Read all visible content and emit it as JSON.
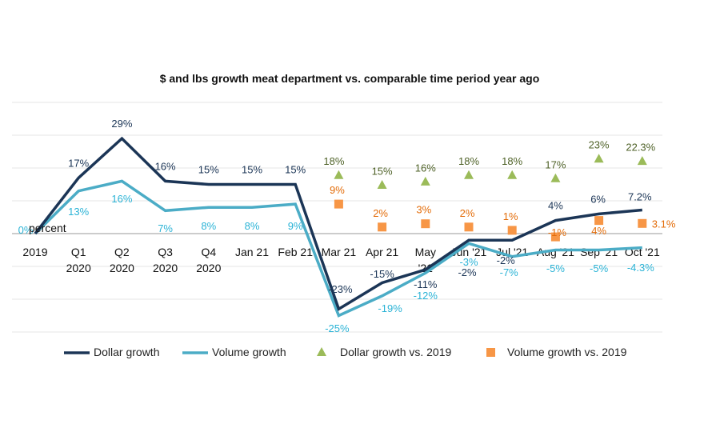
{
  "chart_data": {
    "type": "line",
    "title": "$ and lbs growth meat department vs. comparable time period year ago",
    "ylabel": "percent",
    "ylim": [
      -30,
      40
    ],
    "grid": true,
    "legend_position": "bottom",
    "categories": [
      [
        "2019"
      ],
      [
        "Q1",
        "2020"
      ],
      [
        "Q2",
        "2020"
      ],
      [
        "Q3",
        "2020"
      ],
      [
        "Q4",
        "2020"
      ],
      [
        "Jan 21"
      ],
      [
        "Feb 21"
      ],
      [
        "Mar 21"
      ],
      [
        "Apr 21"
      ],
      [
        "May",
        "'21"
      ],
      [
        "Jun '21"
      ],
      [
        "Jul '21"
      ],
      [
        "Aug '21"
      ],
      [
        "Sep '21"
      ],
      [
        "Oct '21"
      ]
    ],
    "series": [
      {
        "name": "Dollar growth",
        "kind": "line",
        "color": "#1b3556",
        "values": [
          0,
          17,
          29,
          16,
          15,
          15,
          15,
          -23,
          -15,
          -11,
          -2,
          -2,
          4,
          6,
          7.2
        ],
        "labels": [
          "",
          "17%",
          "29%",
          "16%",
          "15%",
          "15%",
          "15%",
          "-23%",
          "-15%",
          "-11%",
          "-2%",
          "-2%",
          "4%",
          "6%",
          "7.2%"
        ]
      },
      {
        "name": "Volume growth",
        "kind": "line",
        "color": "#4bacc6",
        "label_color": "#2bb3d6",
        "values": [
          0,
          13,
          16,
          7,
          8,
          8,
          9,
          -25,
          -19,
          -12,
          -3,
          -7,
          -5,
          -5,
          -4.3
        ],
        "labels": [
          "0%",
          "13%",
          "16%",
          "7%",
          "8%",
          "8%",
          "9%",
          "-25%",
          "-19%",
          "-12%",
          "-3%",
          "-7%",
          "-5%",
          "-5%",
          "-4.3%"
        ]
      },
      {
        "name": "Dollar growth vs. 2019",
        "kind": "triangle",
        "color": "#9bbb59",
        "label_color": "#4f6228",
        "values": [
          null,
          null,
          null,
          null,
          null,
          null,
          null,
          18,
          15,
          16,
          18,
          18,
          17,
          23,
          22.3
        ],
        "labels": [
          "",
          "",
          "",
          "",
          "",
          "",
          "",
          "18%",
          "15%",
          "16%",
          "18%",
          "18%",
          "17%",
          "23%",
          "22.3%"
        ]
      },
      {
        "name": "Volume growth vs. 2019",
        "kind": "square",
        "color": "#f79646",
        "label_color": "#e36c09",
        "values": [
          null,
          null,
          null,
          null,
          null,
          null,
          null,
          9,
          2,
          3,
          2,
          1,
          -1,
          4,
          3.1
        ],
        "labels": [
          "",
          "",
          "",
          "",
          "",
          "",
          "",
          "9%",
          "2%",
          "3%",
          "2%",
          "1%",
          "-1%",
          "4%",
          "3.1%"
        ]
      }
    ]
  }
}
